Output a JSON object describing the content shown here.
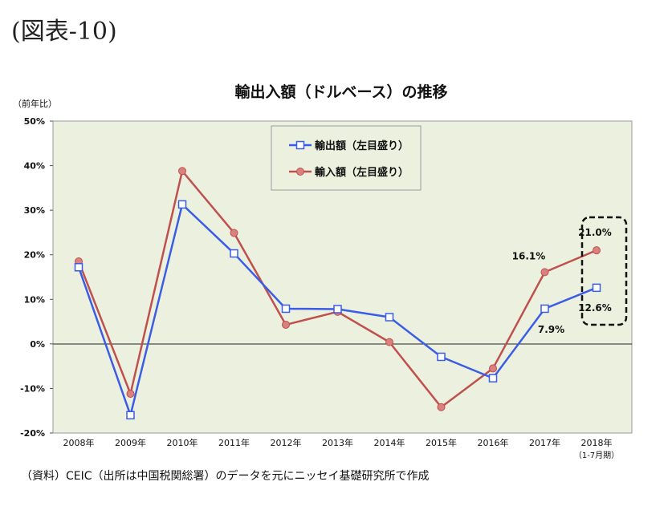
{
  "figure_label": "(図表-10)",
  "source_note": "（資料）CEIC（出所は中国税関総署）のデータを元にニッセイ基礎研究所で作成",
  "chart_data": {
    "type": "line",
    "title": "輸出入額（ドルベース）の推移",
    "y_unit_label": "（前年比）",
    "categories": [
      "2008年",
      "2009年",
      "2010年",
      "2011年",
      "2012年",
      "2013年",
      "2014年",
      "2015年",
      "2016年",
      "2017年",
      "2018年"
    ],
    "last_category_note": "（1-7月期）",
    "yticks": [
      "50%",
      "40%",
      "30%",
      "20%",
      "10%",
      "0%",
      "-10%",
      "-20%"
    ],
    "ylim": [
      -20,
      50
    ],
    "grid": false,
    "legend_position": "top-center",
    "series": [
      {
        "name": "輸出額（左目盛り）",
        "marker": "open-square",
        "color": "#3b5ce6",
        "values": [
          17.2,
          -16.0,
          31.3,
          20.3,
          7.9,
          7.8,
          6.0,
          -2.9,
          -7.7,
          7.9,
          12.6
        ]
      },
      {
        "name": "輸入額（左目盛り）",
        "marker": "filled-circle",
        "color": "#c0504d",
        "values": [
          18.5,
          -11.2,
          38.8,
          24.9,
          4.3,
          7.2,
          0.4,
          -14.2,
          -5.5,
          16.1,
          21.0
        ]
      }
    ],
    "annotations": [
      {
        "text": "16.1%"
      },
      {
        "text": "7.9%"
      },
      {
        "text": "21.0%"
      },
      {
        "text": "12.6%"
      }
    ]
  }
}
